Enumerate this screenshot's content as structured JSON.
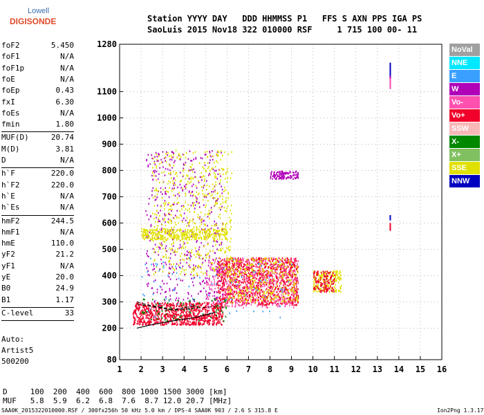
{
  "logo": {
    "line1": "Lowell",
    "line2": "DIGISONDE"
  },
  "header": {
    "row1": "Station YYYY DAY   DDD HHMMSS P1   FFS S AXN PPS IGA PS",
    "row2": "SaoLuis 2015 Nov18 322 010000 RSF     1 715 100 00- 11"
  },
  "params": [
    {
      "name": "foF2",
      "value": "5.450"
    },
    {
      "name": "foF1",
      "value": "N/A"
    },
    {
      "name": "foF1p",
      "value": "N/A"
    },
    {
      "name": "foE",
      "value": "N/A"
    },
    {
      "name": "foEp",
      "value": "0.43"
    },
    {
      "name": "fxI",
      "value": "6.30"
    },
    {
      "name": "foEs",
      "value": "N/A"
    },
    {
      "name": "fmin",
      "value": "1.80"
    },
    {
      "name": "MUF(D)",
      "value": "20.74"
    },
    {
      "name": "M(D)",
      "value": "3.81"
    },
    {
      "name": "D",
      "value": "N/A"
    },
    {
      "name": "h`F",
      "value": "220.0"
    },
    {
      "name": "h`F2",
      "value": "220.0"
    },
    {
      "name": "h`E",
      "value": "N/A"
    },
    {
      "name": "h`Es",
      "value": "N/A"
    },
    {
      "name": "hmF2",
      "value": "244.5"
    },
    {
      "name": "hmF1",
      "value": "N/A"
    },
    {
      "name": "hmE",
      "value": "110.0"
    },
    {
      "name": "yF2",
      "value": "21.2"
    },
    {
      "name": "yF1",
      "value": "N/A"
    },
    {
      "name": "yE",
      "value": "20.0"
    },
    {
      "name": "B0",
      "value": "24.9"
    },
    {
      "name": "B1",
      "value": "1.17"
    },
    {
      "name": "C-level",
      "value": "33"
    }
  ],
  "autoscale": {
    "line1": "Auto:",
    "line2": "Artist5",
    "line3": "500200"
  },
  "muf_table": {
    "row1": "D     100  200  400  600  800 1000 1500 3000 [km]",
    "row2": "MUF   5.8  5.9  6.2  6.8  7.6  8.7 12.0 20.7 [MHz]"
  },
  "footer": {
    "left": "SAA0K_2015322010000.RSF / 300fx256h 50 kHz 5.0 km / DPS-4 SAA0K 903 / 2.6 S 315.8 E",
    "right": "Ion2Png 1.3.17"
  },
  "legend": [
    {
      "label": "NoVal",
      "bg": "#a0a0a0",
      "fg": "#ffffff"
    },
    {
      "label": "NNE",
      "bg": "#00e8ff",
      "fg": "#ffffff"
    },
    {
      "label": "E",
      "bg": "#3aa0ff",
      "fg": "#ffffff"
    },
    {
      "label": "W",
      "bg": "#b000b8",
      "fg": "#ffffff"
    },
    {
      "label": "Vo-",
      "bg": "#ff50b0",
      "fg": "#ffffff"
    },
    {
      "label": "Vo+",
      "bg": "#f0002a",
      "fg": "#ffffff"
    },
    {
      "label": "SSW",
      "bg": "#f8b8b8",
      "fg": "#ffffff"
    },
    {
      "label": "X-",
      "bg": "#008800",
      "fg": "#ffffff"
    },
    {
      "label": "X+",
      "bg": "#80c060",
      "fg": "#ffffff"
    },
    {
      "label": "SSE",
      "bg": "#e0e000",
      "fg": "#ffffff"
    },
    {
      "label": "NNW",
      "bg": "#0000c0",
      "fg": "#ffffff"
    }
  ],
  "chart_data": {
    "type": "scatter",
    "title": "",
    "xlabel": "",
    "ylabel": "",
    "xlim": [
      1,
      16
    ],
    "ylim": [
      80,
      1280
    ],
    "x_ticks": [
      1,
      2,
      3,
      4,
      5,
      6,
      7,
      8,
      9,
      10,
      11,
      12,
      13,
      14,
      15,
      16
    ],
    "y_ticks": [
      80,
      200,
      300,
      400,
      500,
      600,
      700,
      800,
      900,
      1000,
      1100,
      1280
    ],
    "grid": true,
    "legend_position": "right",
    "echo_regions": [
      {
        "color": "#f0002a",
        "x0": 1.6,
        "x1": 5.8,
        "y0": 215,
        "y1": 300,
        "density": 900
      },
      {
        "color": "#f0002a",
        "x0": 5.5,
        "x1": 9.3,
        "y0": 290,
        "y1": 470,
        "density": 1100
      },
      {
        "color": "#ff50b0",
        "x0": 5.0,
        "x1": 9.3,
        "y0": 280,
        "y1": 470,
        "density": 500
      },
      {
        "color": "#e0e000",
        "x0": 6.0,
        "x1": 9.3,
        "y0": 300,
        "y1": 470,
        "density": 300
      },
      {
        "color": "#b000b8",
        "x0": 2.2,
        "x1": 5.8,
        "y0": 300,
        "y1": 880,
        "density": 500
      },
      {
        "color": "#e0e000",
        "x0": 2.5,
        "x1": 6.2,
        "y0": 400,
        "y1": 880,
        "density": 600
      },
      {
        "color": "#e0e000",
        "x0": 2.0,
        "x1": 6.0,
        "y0": 540,
        "y1": 580,
        "density": 350
      },
      {
        "color": "#b000b8",
        "x0": 8.0,
        "x1": 9.3,
        "y0": 770,
        "y1": 800,
        "density": 120
      },
      {
        "color": "#e0e000",
        "x0": 10.0,
        "x1": 11.3,
        "y0": 340,
        "y1": 420,
        "density": 200
      },
      {
        "color": "#f0002a",
        "x0": 10.0,
        "x1": 11.0,
        "y0": 340,
        "y1": 420,
        "density": 120
      },
      {
        "color": "#008800",
        "x0": 2.0,
        "x1": 6.0,
        "y0": 230,
        "y1": 320,
        "density": 80
      },
      {
        "color": "#3aa0ff",
        "x0": 2.0,
        "x1": 9.0,
        "y0": 240,
        "y1": 480,
        "density": 80
      }
    ],
    "vertical_markers": [
      {
        "color": "#0000c0",
        "x": 13.6,
        "y0": 1150,
        "y1": 1210
      },
      {
        "color": "#b000b8",
        "x": 13.6,
        "y0": 1110,
        "y1": 1160
      },
      {
        "color": "#ff50b0",
        "x": 13.6,
        "y0": 1110,
        "y1": 1150
      },
      {
        "color": "#0000c0",
        "x": 13.6,
        "y0": 610,
        "y1": 630
      },
      {
        "color": "#f0002a",
        "x": 13.6,
        "y0": 570,
        "y1": 600
      }
    ],
    "profile_line": [
      [
        1.8,
        200
      ],
      [
        2.5,
        213
      ],
      [
        3.5,
        228
      ],
      [
        4.5,
        240
      ],
      [
        5.45,
        260
      ]
    ],
    "profile_upper_dash": [
      [
        1.8,
        300
      ],
      [
        2.5,
        285
      ],
      [
        3.5,
        270
      ],
      [
        4.5,
        285
      ]
    ],
    "profile_lower_dash": [
      [
        1.8,
        292
      ],
      [
        2.5,
        282
      ],
      [
        3.5,
        268
      ],
      [
        4.5,
        276
      ],
      [
        5.45,
        282
      ]
    ]
  }
}
